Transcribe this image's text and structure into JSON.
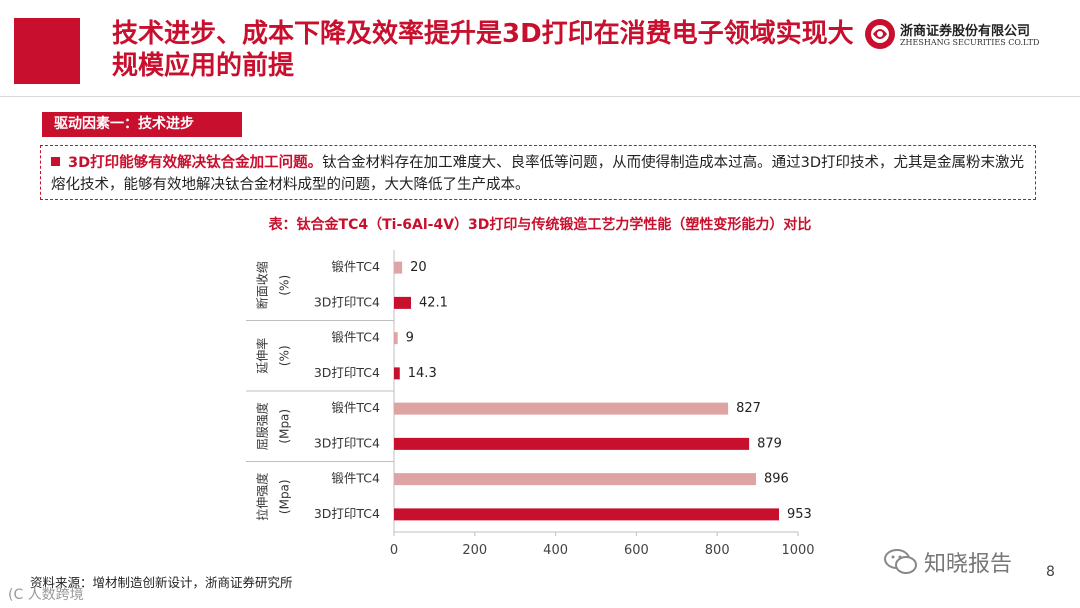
{
  "header": {
    "title": "技术进步、成本下降及效率提升是3D打印在消费电子领域实现大规模应用的前提",
    "company_cn": "浙商证券股份有限公司",
    "company_en": "ZHESHANG SECURITIES CO.LTD",
    "accent_color": "#c8102e"
  },
  "tag": {
    "label": "驱动因素一：技术进步"
  },
  "note": {
    "strong": "3D打印能够有效解决钛合金加工问题。",
    "text": "钛合金材料存在加工难度大、良率低等问题，从而使得制造成本过高。通过3D打印技术，尤其是金属粉末激光熔化技术，能够有效地解决钛合金材料成型的问题，大大降低了生产成本。"
  },
  "chart_data": {
    "type": "bar",
    "orientation": "horizontal",
    "title": "表：钛合金TC4（Ti-6Al-4V）3D打印与传统锻造工艺力学性能（塑性变形能力）对比",
    "xlim": [
      0,
      1000
    ],
    "x_ticks": [
      0,
      200,
      400,
      600,
      800,
      1000
    ],
    "groups": [
      {
        "name": "断面收缩",
        "unit": "(%)",
        "bars": [
          {
            "label": "锻件TC4",
            "value": 20,
            "value_label": "20",
            "color": "#dfa3a3"
          },
          {
            "label": "3D打印TC4",
            "value": 42.1,
            "value_label": "42.1",
            "color": "#c8102e"
          }
        ]
      },
      {
        "name": "延伸率",
        "unit": "(%)",
        "bars": [
          {
            "label": "锻件TC4",
            "value": 9,
            "value_label": "9",
            "color": "#dfa3a3"
          },
          {
            "label": "3D打印TC4",
            "value": 14.3,
            "value_label": "14.3",
            "color": "#c8102e"
          }
        ]
      },
      {
        "name": "屈服强度",
        "unit": "(Mpa)",
        "bars": [
          {
            "label": "锻件TC4",
            "value": 827,
            "value_label": "827",
            "color": "#dfa3a3"
          },
          {
            "label": "3D打印TC4",
            "value": 879,
            "value_label": "879",
            "color": "#c8102e"
          }
        ]
      },
      {
        "name": "拉伸强度",
        "unit": "(Mpa)",
        "bars": [
          {
            "label": "锻件TC4",
            "value": 896,
            "value_label": "896",
            "color": "#dfa3a3"
          },
          {
            "label": "3D打印TC4",
            "value": 953,
            "value_label": "953",
            "color": "#c8102e"
          }
        ]
      }
    ]
  },
  "footer": {
    "source": "资料来源：增材制造创新设计，浙商证券研究所",
    "watermark_left": "(C 人数跨境",
    "watermark_right": "知晓报告",
    "page_number": "8"
  }
}
